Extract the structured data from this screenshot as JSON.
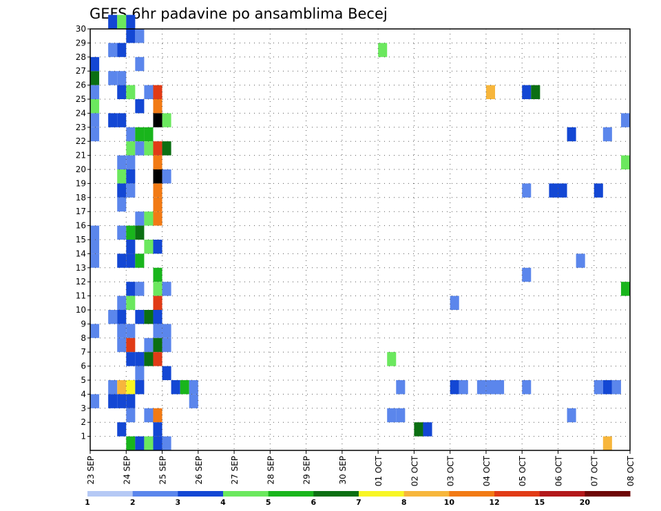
{
  "chart_data": {
    "type": "heatmap",
    "title": "GEFS 6hr padavine po ansamblima Becej",
    "xlabel": "",
    "ylabel": "",
    "x_ticks": [
      "23 SEP",
      "24 SEP",
      "25 SEP",
      "26 SEP",
      "27 SEP",
      "28 SEP",
      "29 SEP",
      "30 SEP",
      "01 OCT",
      "02 OCT",
      "03 OCT",
      "04 OCT",
      "05 OCT",
      "06 OCT",
      "07 OCT",
      "08 OCT"
    ],
    "y_ticks": [
      "1",
      "2",
      "3",
      "4",
      "5",
      "6",
      "7",
      "8",
      "9",
      "10",
      "11",
      "12",
      "13",
      "14",
      "15",
      "16",
      "17",
      "18",
      "19",
      "20",
      "21",
      "22",
      "23",
      "24",
      "25",
      "26",
      "27",
      "28",
      "29",
      "30"
    ],
    "x_unit": "6-hour step from 23 SEP 00z",
    "x_range": [
      0,
      60
    ],
    "y_range": [
      0,
      30
    ],
    "grid": true,
    "colorbar": {
      "labels": [
        "1",
        "2",
        "3",
        "4",
        "5",
        "6",
        "7",
        "8",
        "10",
        "12",
        "15",
        "20"
      ],
      "colors": [
        "#b5c9f5",
        "#5b86ec",
        "#1347d4",
        "#6be85e",
        "#19b51c",
        "#0b6f12",
        "#f8f624",
        "#f7b63c",
        "#f27a14",
        "#e13b16",
        "#b3181a",
        "#6e0606"
      ]
    },
    "values": [
      [
        0,
        26,
        5
      ],
      [
        0,
        27,
        2
      ],
      [
        0,
        24,
        3
      ],
      [
        0,
        25,
        1
      ],
      [
        0,
        23,
        1
      ],
      [
        0,
        22,
        1
      ],
      [
        0,
        15,
        1
      ],
      [
        0,
        14,
        1
      ],
      [
        0,
        13,
        1
      ],
      [
        0,
        8,
        1
      ],
      [
        0,
        3,
        1
      ],
      [
        2,
        30,
        2
      ],
      [
        3,
        30,
        3
      ],
      [
        4,
        30,
        2
      ],
      [
        4,
        29,
        2
      ],
      [
        5,
        29,
        1
      ],
      [
        2,
        28,
        1
      ],
      [
        3,
        28,
        2
      ],
      [
        2,
        26,
        1
      ],
      [
        3,
        26,
        1
      ],
      [
        5,
        27,
        1
      ],
      [
        3,
        25,
        2
      ],
      [
        4,
        25,
        3
      ],
      [
        6,
        25,
        1
      ],
      [
        7,
        25,
        9
      ],
      [
        5,
        24,
        2
      ],
      [
        7,
        24,
        8
      ],
      [
        2,
        23,
        2
      ],
      [
        3,
        23,
        2
      ],
      [
        7,
        23,
        12
      ],
      [
        8,
        23,
        3
      ],
      [
        4,
        22,
        1
      ],
      [
        5,
        22,
        4
      ],
      [
        6,
        22,
        4
      ],
      [
        4,
        21,
        3
      ],
      [
        5,
        21,
        1
      ],
      [
        6,
        21,
        3
      ],
      [
        7,
        21,
        9
      ],
      [
        8,
        21,
        5
      ],
      [
        3,
        20,
        1
      ],
      [
        4,
        20,
        1
      ],
      [
        7,
        20,
        8
      ],
      [
        3,
        19,
        3
      ],
      [
        4,
        19,
        2
      ],
      [
        7,
        19,
        12
      ],
      [
        8,
        19,
        1
      ],
      [
        3,
        18,
        2
      ],
      [
        4,
        18,
        1
      ],
      [
        7,
        18,
        8
      ],
      [
        3,
        17,
        1
      ],
      [
        7,
        17,
        8
      ],
      [
        5,
        16,
        1
      ],
      [
        6,
        16,
        3
      ],
      [
        7,
        16,
        8
      ],
      [
        3,
        15,
        1
      ],
      [
        4,
        15,
        4
      ],
      [
        5,
        15,
        5
      ],
      [
        4,
        14,
        2
      ],
      [
        6,
        14,
        3
      ],
      [
        7,
        14,
        2
      ],
      [
        3,
        13,
        2
      ],
      [
        4,
        13,
        2
      ],
      [
        5,
        13,
        4
      ],
      [
        7,
        12,
        4
      ],
      [
        4,
        11,
        2
      ],
      [
        5,
        11,
        1
      ],
      [
        7,
        11,
        3
      ],
      [
        8,
        11,
        1
      ],
      [
        3,
        10,
        1
      ],
      [
        4,
        10,
        3
      ],
      [
        7,
        10,
        9
      ],
      [
        2,
        9,
        1
      ],
      [
        3,
        9,
        2
      ],
      [
        5,
        9,
        2
      ],
      [
        6,
        9,
        5
      ],
      [
        7,
        9,
        2
      ],
      [
        3,
        8,
        1
      ],
      [
        4,
        8,
        1
      ],
      [
        7,
        8,
        1
      ],
      [
        8,
        8,
        1
      ],
      [
        3,
        7,
        1
      ],
      [
        4,
        7,
        9
      ],
      [
        6,
        7,
        1
      ],
      [
        7,
        7,
        5
      ],
      [
        8,
        7,
        1
      ],
      [
        4,
        6,
        2
      ],
      [
        5,
        6,
        2
      ],
      [
        6,
        6,
        5
      ],
      [
        7,
        6,
        9
      ],
      [
        5,
        5,
        1
      ],
      [
        8,
        5,
        2
      ],
      [
        2,
        4,
        1
      ],
      [
        3,
        4,
        7
      ],
      [
        4,
        4,
        6
      ],
      [
        5,
        4,
        2
      ],
      [
        9,
        4,
        2
      ],
      [
        10,
        4,
        4
      ],
      [
        11,
        4,
        1
      ],
      [
        2,
        3,
        2
      ],
      [
        3,
        3,
        2
      ],
      [
        4,
        3,
        2
      ],
      [
        11,
        3,
        1
      ],
      [
        4,
        2,
        1
      ],
      [
        6,
        2,
        1
      ],
      [
        7,
        2,
        8
      ],
      [
        3,
        1,
        2
      ],
      [
        7,
        1,
        2
      ],
      [
        4,
        0,
        4
      ],
      [
        5,
        0,
        2
      ],
      [
        6,
        0,
        3
      ],
      [
        7,
        0,
        2
      ],
      [
        8,
        0,
        1
      ],
      [
        32,
        28,
        3
      ],
      [
        33,
        6,
        3
      ],
      [
        33,
        2,
        1
      ],
      [
        34,
        2,
        1
      ],
      [
        34,
        4,
        1
      ],
      [
        36,
        1,
        5
      ],
      [
        37,
        1,
        2
      ],
      [
        40,
        10,
        1
      ],
      [
        40,
        4,
        2
      ],
      [
        41,
        4,
        1
      ],
      [
        43,
        4,
        1
      ],
      [
        44,
        4,
        1
      ],
      [
        45,
        4,
        1
      ],
      [
        44,
        25,
        7
      ],
      [
        48,
        4,
        1
      ],
      [
        48,
        12,
        1
      ],
      [
        48,
        18,
        1
      ],
      [
        48,
        25,
        2
      ],
      [
        49,
        25,
        5
      ],
      [
        51,
        18,
        2
      ],
      [
        52,
        18,
        2
      ],
      [
        53,
        22,
        2
      ],
      [
        53,
        2,
        1
      ],
      [
        54,
        13,
        1
      ],
      [
        56,
        4,
        1
      ],
      [
        57,
        4,
        2
      ],
      [
        58,
        4,
        1
      ],
      [
        56,
        18,
        2
      ],
      [
        57,
        22,
        1
      ],
      [
        57,
        0,
        7
      ],
      [
        59,
        23,
        1
      ],
      [
        59,
        20,
        3
      ],
      [
        59,
        11,
        4
      ]
    ]
  }
}
